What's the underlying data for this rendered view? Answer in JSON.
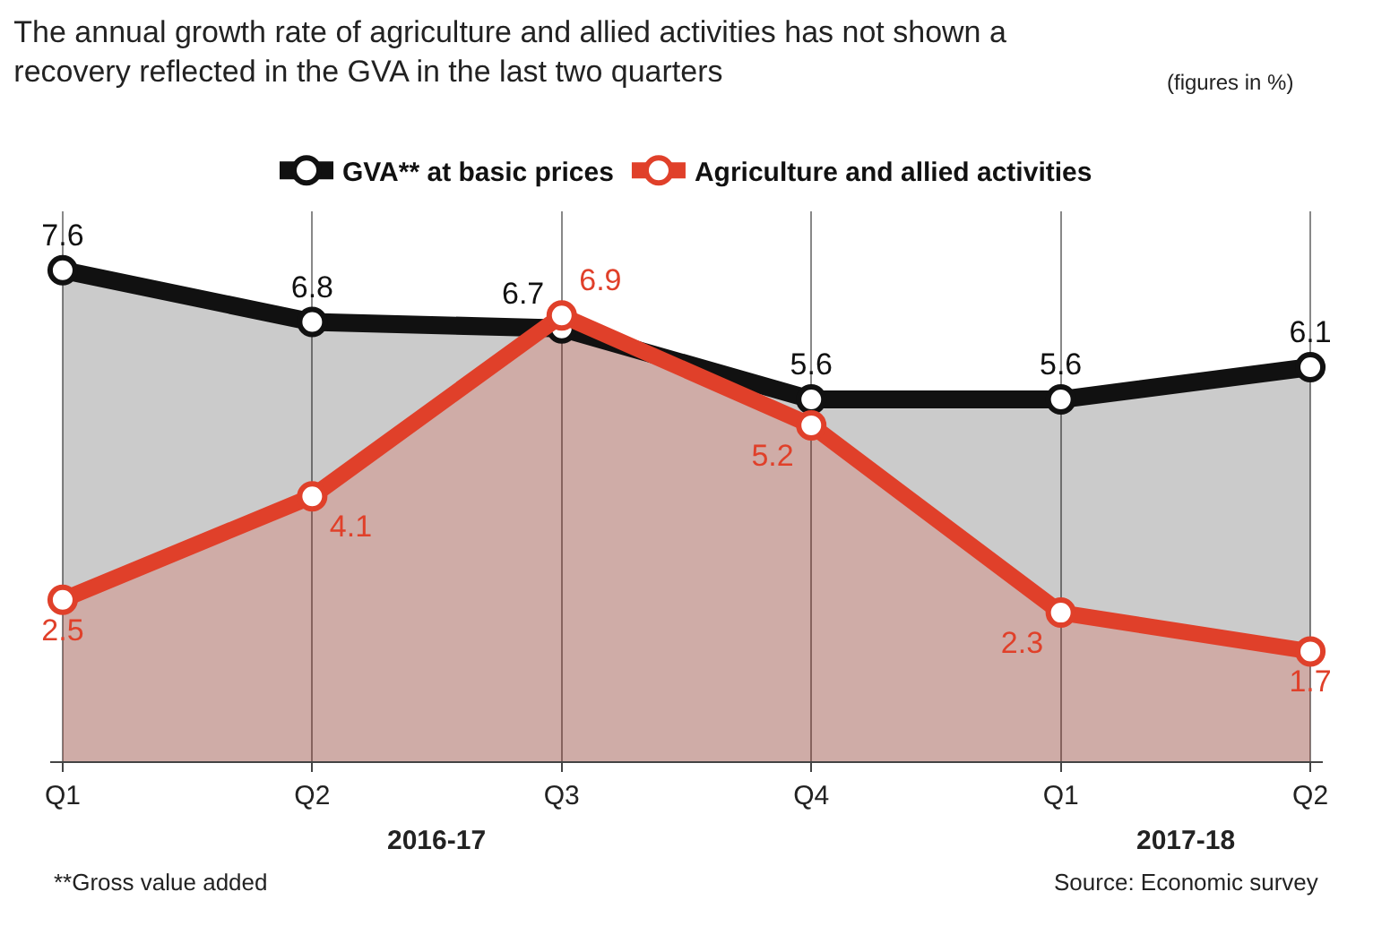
{
  "chart_data": {
    "type": "area",
    "title": "The annual growth rate of agriculture and allied activities has not shown a recovery reflected in the GVA in the last two quarters",
    "subtitle": "(figures in %)",
    "categories": [
      "Q1",
      "Q2",
      "Q3",
      "Q4",
      "Q1",
      "Q2"
    ],
    "series": [
      {
        "name": "GVA** at basic prices",
        "color": "#111111",
        "values": [
          7.6,
          6.8,
          6.7,
          5.6,
          5.6,
          6.1
        ]
      },
      {
        "name": "Agriculture and allied activities",
        "color": "#e0402a",
        "values": [
          2.5,
          4.1,
          6.9,
          5.2,
          2.3,
          1.7
        ]
      }
    ],
    "data_labels": true,
    "grid": "x",
    "legend": "top",
    "marker": "circle",
    "line_style": "solid",
    "annotations": [
      "2016-17",
      "2017-18",
      "**Gross value added",
      "Source: Economic survey"
    ]
  }
}
